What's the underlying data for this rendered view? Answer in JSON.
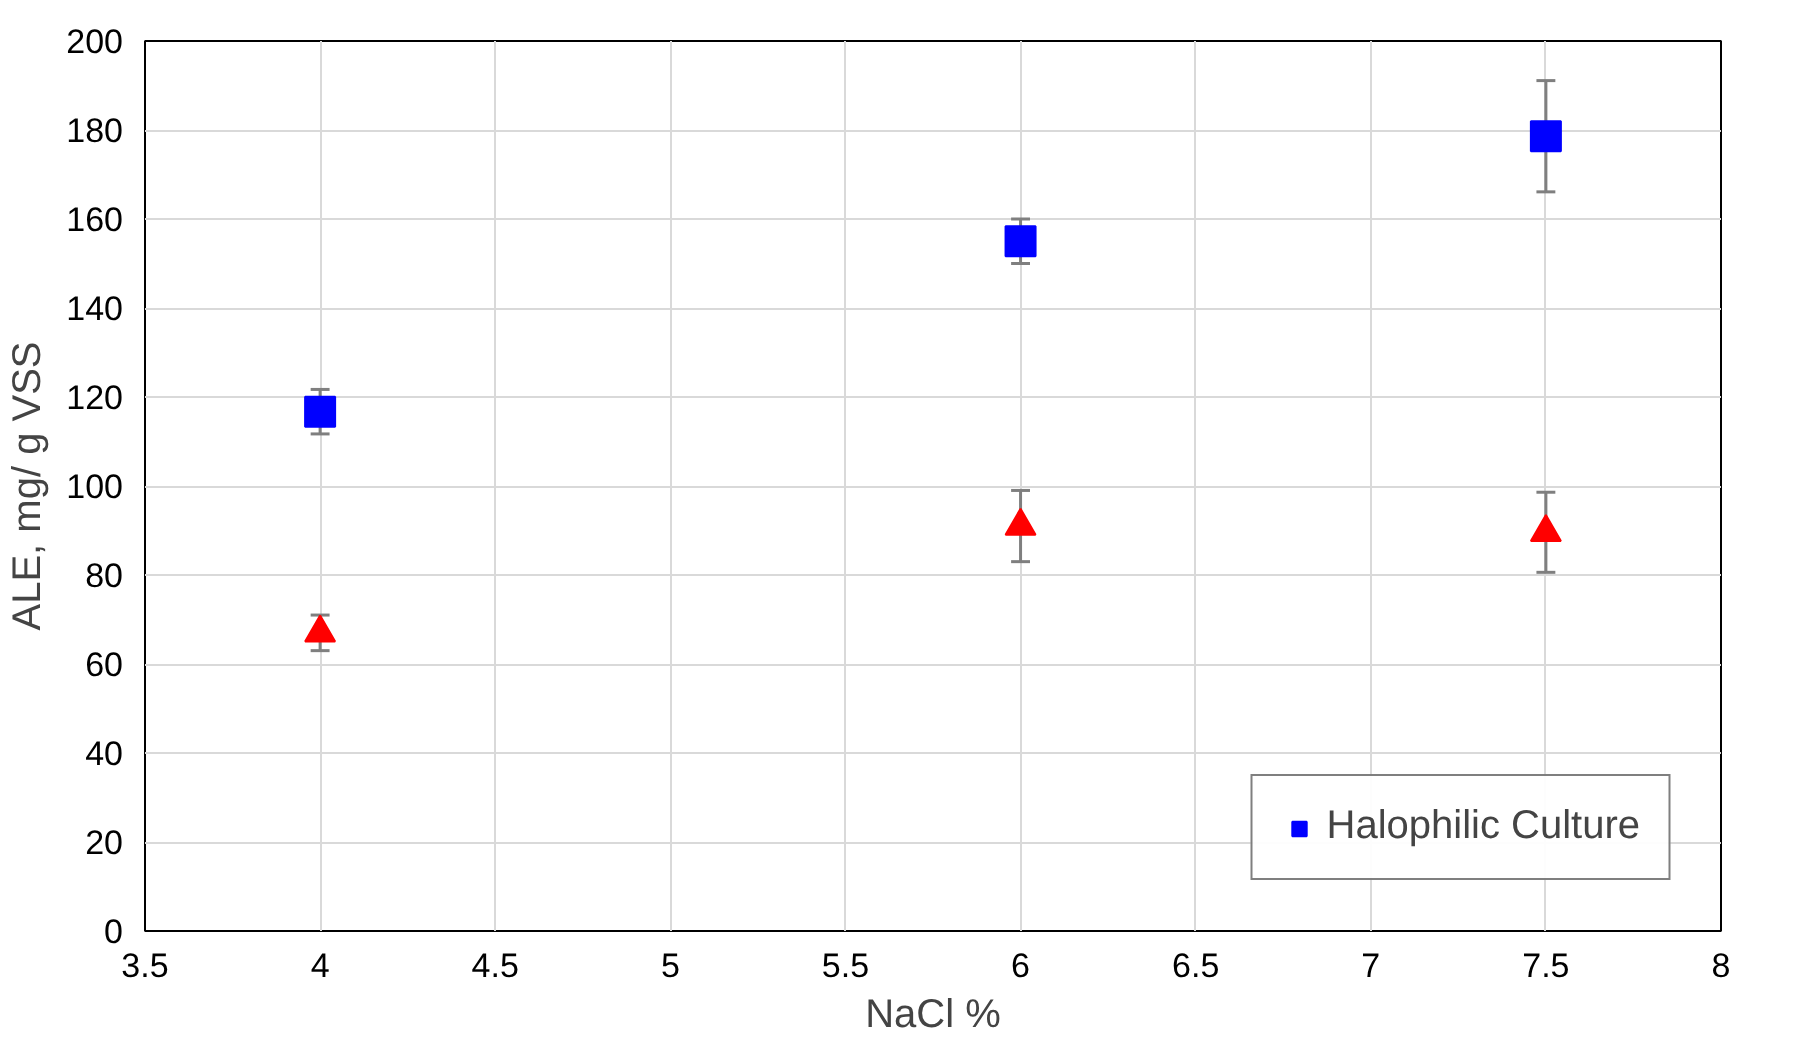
{
  "chart_data": {
    "type": "scatter",
    "xlabel": "NaCl %",
    "ylabel": "ALE, mg/ g VSS",
    "x": [
      4,
      6,
      7.5
    ],
    "series": [
      {
        "name": "Halophilic Culture",
        "color": "#0000ff",
        "marker": "square",
        "values": [
          116.7,
          155,
          178.6
        ],
        "errors": [
          5,
          5,
          12.5
        ]
      },
      {
        "color": "#ff0000",
        "marker": "triangle",
        "values": [
          67,
          91,
          89.6
        ],
        "errors": [
          4,
          8,
          9
        ]
      }
    ],
    "xlim": [
      3.5,
      8
    ],
    "xticks": [
      3.5,
      4,
      4.5,
      5,
      5.5,
      6,
      6.5,
      7,
      7.5,
      8
    ],
    "ylim": [
      0,
      200
    ],
    "yticks": [
      0,
      20,
      40,
      60,
      80,
      100,
      120,
      140,
      160,
      180,
      200
    ],
    "grid": true,
    "legend": "bottom right"
  }
}
